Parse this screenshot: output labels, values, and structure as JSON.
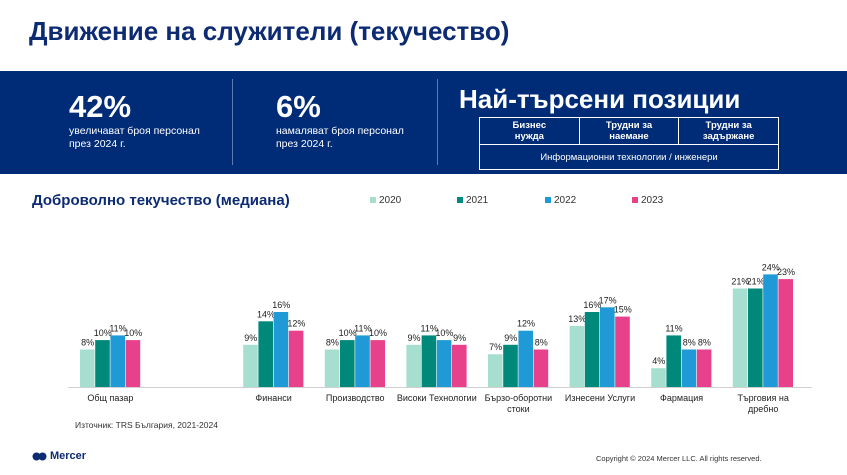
{
  "page": {
    "title": "Движение на служители (текучество)",
    "source": "Източник: TRS България, 2021-2024",
    "logo_text": "Mercer",
    "copyright": "Copyright © 2024 Mercer LLC. All rights reserved."
  },
  "stats": [
    {
      "value": "42%",
      "desc_line1": "увеличават броя персонал",
      "desc_line2": "през 2024 г."
    },
    {
      "value": "6%",
      "desc_line1": "намаляват броя персонал",
      "desc_line2": "през 2024 г."
    }
  ],
  "positions": {
    "title": "Най-търсени позиции",
    "headers": [
      {
        "line1": "Бизнес",
        "line2": "нужда"
      },
      {
        "line1": "Трудни за",
        "line2": "наемане"
      },
      {
        "line1": "Трудни за",
        "line2": "задържане"
      }
    ],
    "row": "Информационни технологии / инженери"
  },
  "chart_data": {
    "type": "bar",
    "title": "Доброволно текучество (медиана)",
    "legend_position": "top",
    "categories": [
      {
        "line1": "Общ пазар",
        "line2": ""
      },
      {
        "line1": "",
        "line2": ""
      },
      {
        "line1": "Финанси",
        "line2": ""
      },
      {
        "line1": "Производство",
        "line2": ""
      },
      {
        "line1": "Високи Технологии",
        "line2": ""
      },
      {
        "line1": "Бързо-оборотни",
        "line2": "стоки"
      },
      {
        "line1": "Изнесени Услуги",
        "line2": ""
      },
      {
        "line1": "Фармация",
        "line2": ""
      },
      {
        "line1": "Търговия на",
        "line2": "дребно"
      }
    ],
    "series": [
      {
        "name": "2020",
        "color": "#a6dfcf",
        "values": [
          8,
          null,
          9,
          8,
          9,
          7,
          13,
          4,
          21
        ]
      },
      {
        "name": "2021",
        "color": "#00897b",
        "values": [
          10,
          null,
          14,
          10,
          11,
          9,
          16,
          11,
          21
        ]
      },
      {
        "name": "2022",
        "color": "#1f9ad6",
        "values": [
          11,
          null,
          16,
          11,
          10,
          12,
          17,
          8,
          24
        ]
      },
      {
        "name": "2023",
        "color": "#e8418c",
        "values": [
          10,
          null,
          12,
          10,
          9,
          8,
          15,
          8,
          23
        ]
      }
    ],
    "unit": "%",
    "ylim": [
      0,
      25
    ],
    "grid": false
  }
}
